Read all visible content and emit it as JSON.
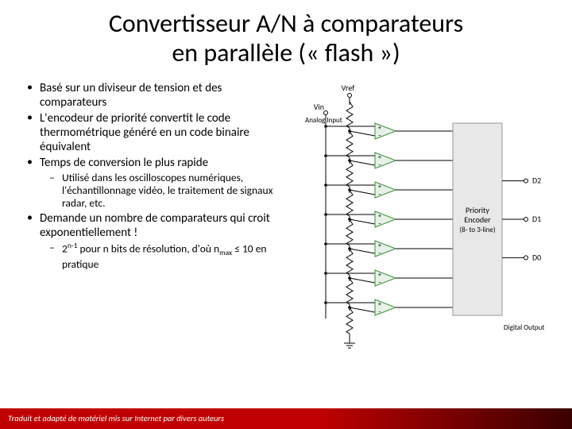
{
  "title_line1": "Convertisseur A/N à comparateurs",
  "title_line2": "en parallèle (« flash »)",
  "bullets": {
    "b1": "Basé sur un diviseur de tension et des comparateurs",
    "b2": "L'encodeur de priorité convertit le code thermométrique généré en un code binaire équivalent",
    "b3": "Temps de conversion le plus rapide",
    "b3sub": "Utilisé dans les oscilloscopes numériques, l'échantillonnage vidéo, le traitement de signaux radar, etc.",
    "b4": "Demande un nombre de comparateurs qui croit exponentiellement !",
    "b5a": "2",
    "b5sup": "n-1",
    "b5b": " pour n bits de résolution, d'où  n",
    "b5sub": "max",
    "b5c": " ≤ 10 en pratique"
  },
  "footer": "Traduit et adapté de matériel mis sur Internet par divers auteurs",
  "diagram": {
    "vref": "Vref",
    "vin": "Vin",
    "analog": "Analog Input",
    "encoder_l1": "Priority",
    "encoder_l2": "Encoder",
    "encoder_l3": "(8- to 3-line)",
    "d2": "D2",
    "d1": "D1",
    "d0": "D0",
    "digout": "Digital Output",
    "colors": {
      "comp_stroke": "#3b8f3b",
      "comp_fill": "#e6f2e6",
      "box_stroke": "#999999",
      "box_fill": "#e8e8e8",
      "wire": "#000000",
      "text": "#000000"
    }
  }
}
